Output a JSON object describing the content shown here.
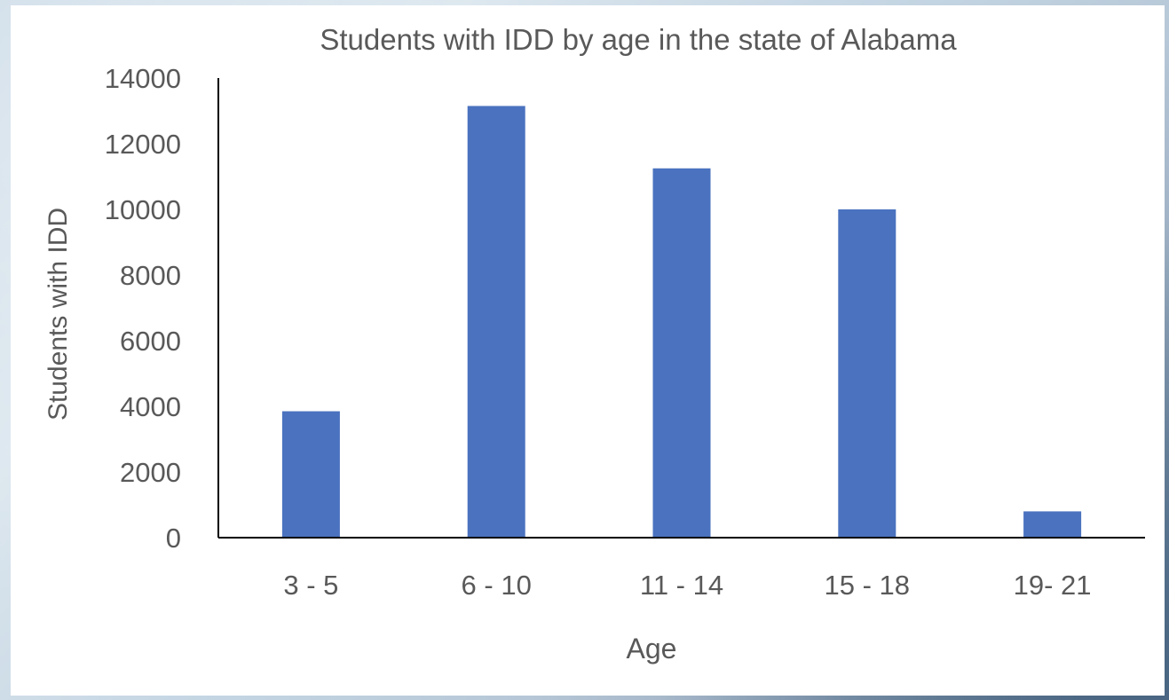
{
  "chart_data": {
    "type": "bar",
    "title": "Students with IDD by age in the state of Alabama",
    "xlabel": "Age",
    "ylabel": "Students with IDD",
    "categories": [
      "3 - 5",
      "6 - 10",
      "11 - 14",
      "15 - 18",
      "19- 21"
    ],
    "values": [
      3850,
      13150,
      11250,
      10000,
      800
    ],
    "ylim": [
      0,
      14000
    ],
    "yticks": [
      0,
      2000,
      4000,
      6000,
      8000,
      10000,
      12000,
      14000
    ],
    "ytick_labels": [
      "0",
      "2000",
      "4000",
      "6000",
      "8000",
      "10000",
      "12000",
      "14000"
    ],
    "grid": false,
    "legend": "none",
    "bar_color": "#4a72bf"
  }
}
